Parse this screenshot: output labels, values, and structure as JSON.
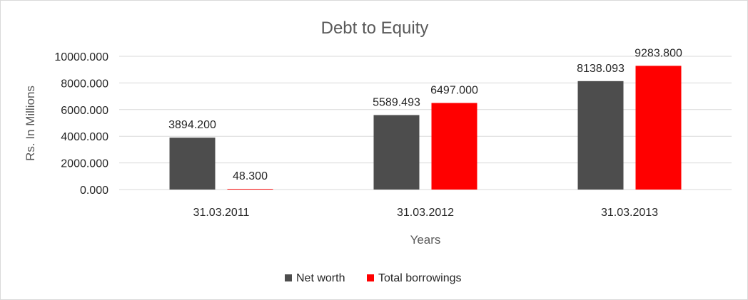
{
  "chart_data": {
    "type": "bar",
    "title": "Debt to Equity",
    "xlabel": "Years",
    "ylabel": "Rs. In Millions",
    "categories": [
      "31.03.2011",
      "31.03.2012",
      "31.03.2013"
    ],
    "series": [
      {
        "name": "Net worth",
        "values": [
          3894.2,
          5589.493,
          8138.093
        ],
        "labels": [
          "3894.200",
          "5589.493",
          "8138.093"
        ],
        "color": "#4d4d4d"
      },
      {
        "name": "Total borrowings",
        "values": [
          48.3,
          6497.0,
          9283.8
        ],
        "labels": [
          "48.300",
          "6497.000",
          "9283.800"
        ],
        "color": "#ff0000"
      }
    ],
    "ylim": [
      0,
      10000
    ],
    "yticks": [
      0,
      2000,
      4000,
      6000,
      8000,
      10000
    ],
    "ytick_labels": [
      "0.000",
      "2000.000",
      "4000.000",
      "6000.000",
      "8000.000",
      "10000.000"
    ],
    "grid": true,
    "legend": "bottom"
  }
}
